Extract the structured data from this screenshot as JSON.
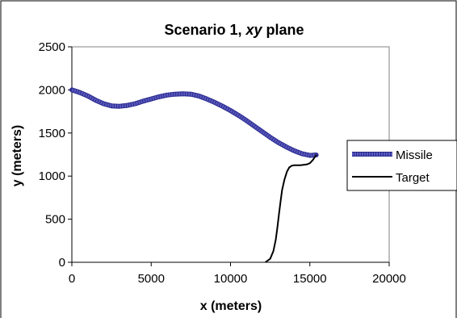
{
  "chart_data": {
    "type": "line",
    "title_main": "Scenario 1, ",
    "title_italic": "xy",
    "title_tail": " plane",
    "xlabel": "x (meters)",
    "ylabel": "y (meters)",
    "xlim": [
      0,
      20000
    ],
    "ylim": [
      0,
      2500
    ],
    "x_ticks": [
      "0",
      "5000",
      "10000",
      "15000",
      "20000"
    ],
    "y_ticks": [
      "0",
      "500",
      "1000",
      "1500",
      "2000",
      "2500"
    ],
    "grid": false,
    "legend_position": "right",
    "series": [
      {
        "name": "Missile",
        "color": "#5b5bbf",
        "x": [
          0,
          500,
          1000,
          1500,
          2000,
          2500,
          3000,
          3500,
          4000,
          4500,
          5000,
          5500,
          6000,
          6500,
          7000,
          7500,
          8000,
          8500,
          9000,
          9500,
          10000,
          10500,
          11000,
          11500,
          12000,
          12500,
          13000,
          13500,
          14000,
          14500,
          15000,
          15400
        ],
        "y": [
          2000,
          1970,
          1930,
          1880,
          1840,
          1815,
          1810,
          1820,
          1840,
          1870,
          1895,
          1920,
          1940,
          1950,
          1955,
          1950,
          1930,
          1895,
          1855,
          1810,
          1760,
          1705,
          1645,
          1580,
          1515,
          1450,
          1390,
          1340,
          1295,
          1260,
          1240,
          1245
        ]
      },
      {
        "name": "Target",
        "color": "#000000",
        "x": [
          12200,
          12500,
          12700,
          12850,
          12950,
          13050,
          13150,
          13250,
          13400,
          13550,
          13700,
          13850,
          14000,
          14200,
          14400,
          14600,
          14800,
          15000,
          15200,
          15400
        ],
        "y": [
          0,
          40,
          130,
          260,
          400,
          550,
          700,
          840,
          960,
          1050,
          1100,
          1120,
          1125,
          1125,
          1125,
          1130,
          1135,
          1150,
          1190,
          1245
        ]
      }
    ]
  }
}
